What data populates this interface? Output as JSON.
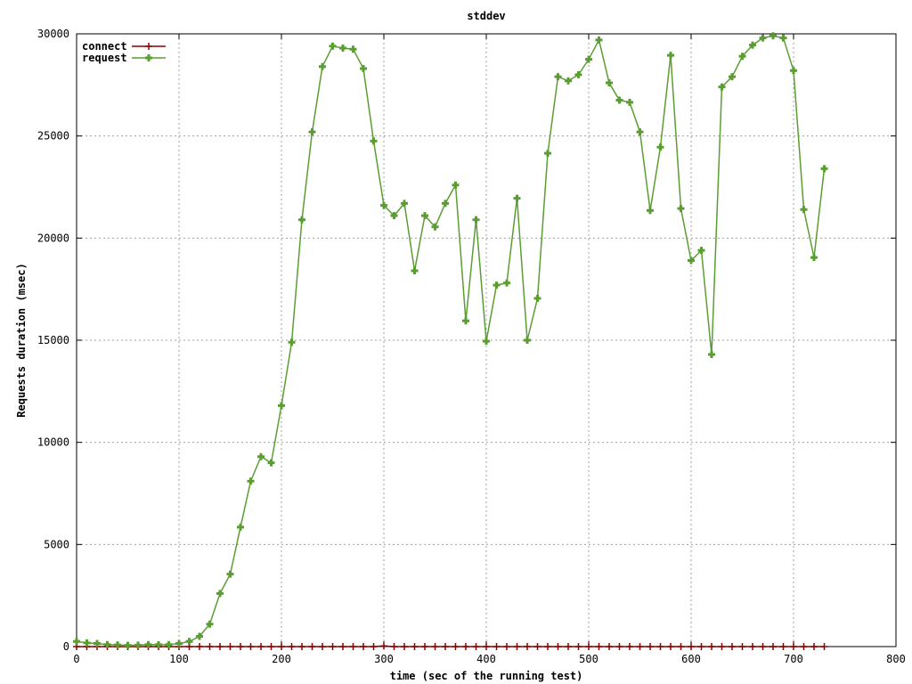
{
  "chart_data": {
    "type": "line",
    "title": "stddev",
    "xlabel": "time (sec of the running test)",
    "ylabel": "Requests duration (msec)",
    "xlim": [
      0,
      800
    ],
    "ylim": [
      0,
      30000
    ],
    "x_ticks": [
      0,
      100,
      200,
      300,
      400,
      500,
      600,
      700,
      800
    ],
    "y_ticks": [
      0,
      5000,
      10000,
      15000,
      20000,
      25000,
      30000
    ],
    "grid": true,
    "legend_position": "top-left",
    "x": [
      0,
      10,
      20,
      30,
      40,
      50,
      60,
      70,
      80,
      90,
      100,
      110,
      120,
      130,
      140,
      150,
      160,
      170,
      180,
      190,
      200,
      210,
      220,
      230,
      240,
      250,
      260,
      270,
      280,
      290,
      300,
      310,
      320,
      330,
      340,
      350,
      360,
      370,
      380,
      390,
      400,
      410,
      420,
      430,
      440,
      450,
      460,
      470,
      480,
      490,
      500,
      510,
      520,
      530,
      540,
      550,
      560,
      570,
      580,
      590,
      600,
      610,
      620,
      630,
      640,
      650,
      660,
      670,
      680,
      690,
      700,
      710,
      720,
      730
    ],
    "series": [
      {
        "name": "connect",
        "color": "#8b0000",
        "marker": "plus",
        "values": [
          0,
          0,
          0,
          0,
          0,
          0,
          0,
          0,
          0,
          0,
          0,
          0,
          0,
          0,
          0,
          0,
          0,
          0,
          0,
          0,
          0,
          0,
          0,
          0,
          0,
          0,
          0,
          0,
          0,
          0,
          30,
          0,
          0,
          0,
          0,
          0,
          0,
          0,
          0,
          0,
          0,
          0,
          0,
          0,
          0,
          0,
          0,
          0,
          0,
          0,
          0,
          0,
          0,
          0,
          0,
          0,
          0,
          0,
          0,
          0,
          0,
          0,
          0,
          0,
          0,
          0,
          0,
          0,
          0,
          0,
          0,
          0,
          0,
          0
        ]
      },
      {
        "name": "request",
        "color": "#5a9e32",
        "marker": "filled-cross",
        "values": [
          250,
          180,
          150,
          100,
          80,
          60,
          70,
          100,
          90,
          100,
          150,
          250,
          500,
          1100,
          2600,
          3550,
          5850,
          8100,
          9300,
          9000,
          11800,
          14900,
          20900,
          25200,
          28400,
          29400,
          29300,
          29250,
          28300,
          24750,
          21600,
          21100,
          21700,
          18400,
          21100,
          20550,
          21700,
          22600,
          15950,
          20900,
          14950,
          17700,
          17800,
          21950,
          15000,
          17050,
          24150,
          27900,
          27700,
          28000,
          28750,
          29700,
          27600,
          26750,
          26650,
          25200,
          21350,
          24450,
          28950,
          21450,
          18900,
          19400,
          14300,
          27400,
          27900,
          28900,
          29450,
          29800,
          29900,
          29800,
          28200,
          21400,
          19050,
          23400
        ]
      }
    ]
  }
}
